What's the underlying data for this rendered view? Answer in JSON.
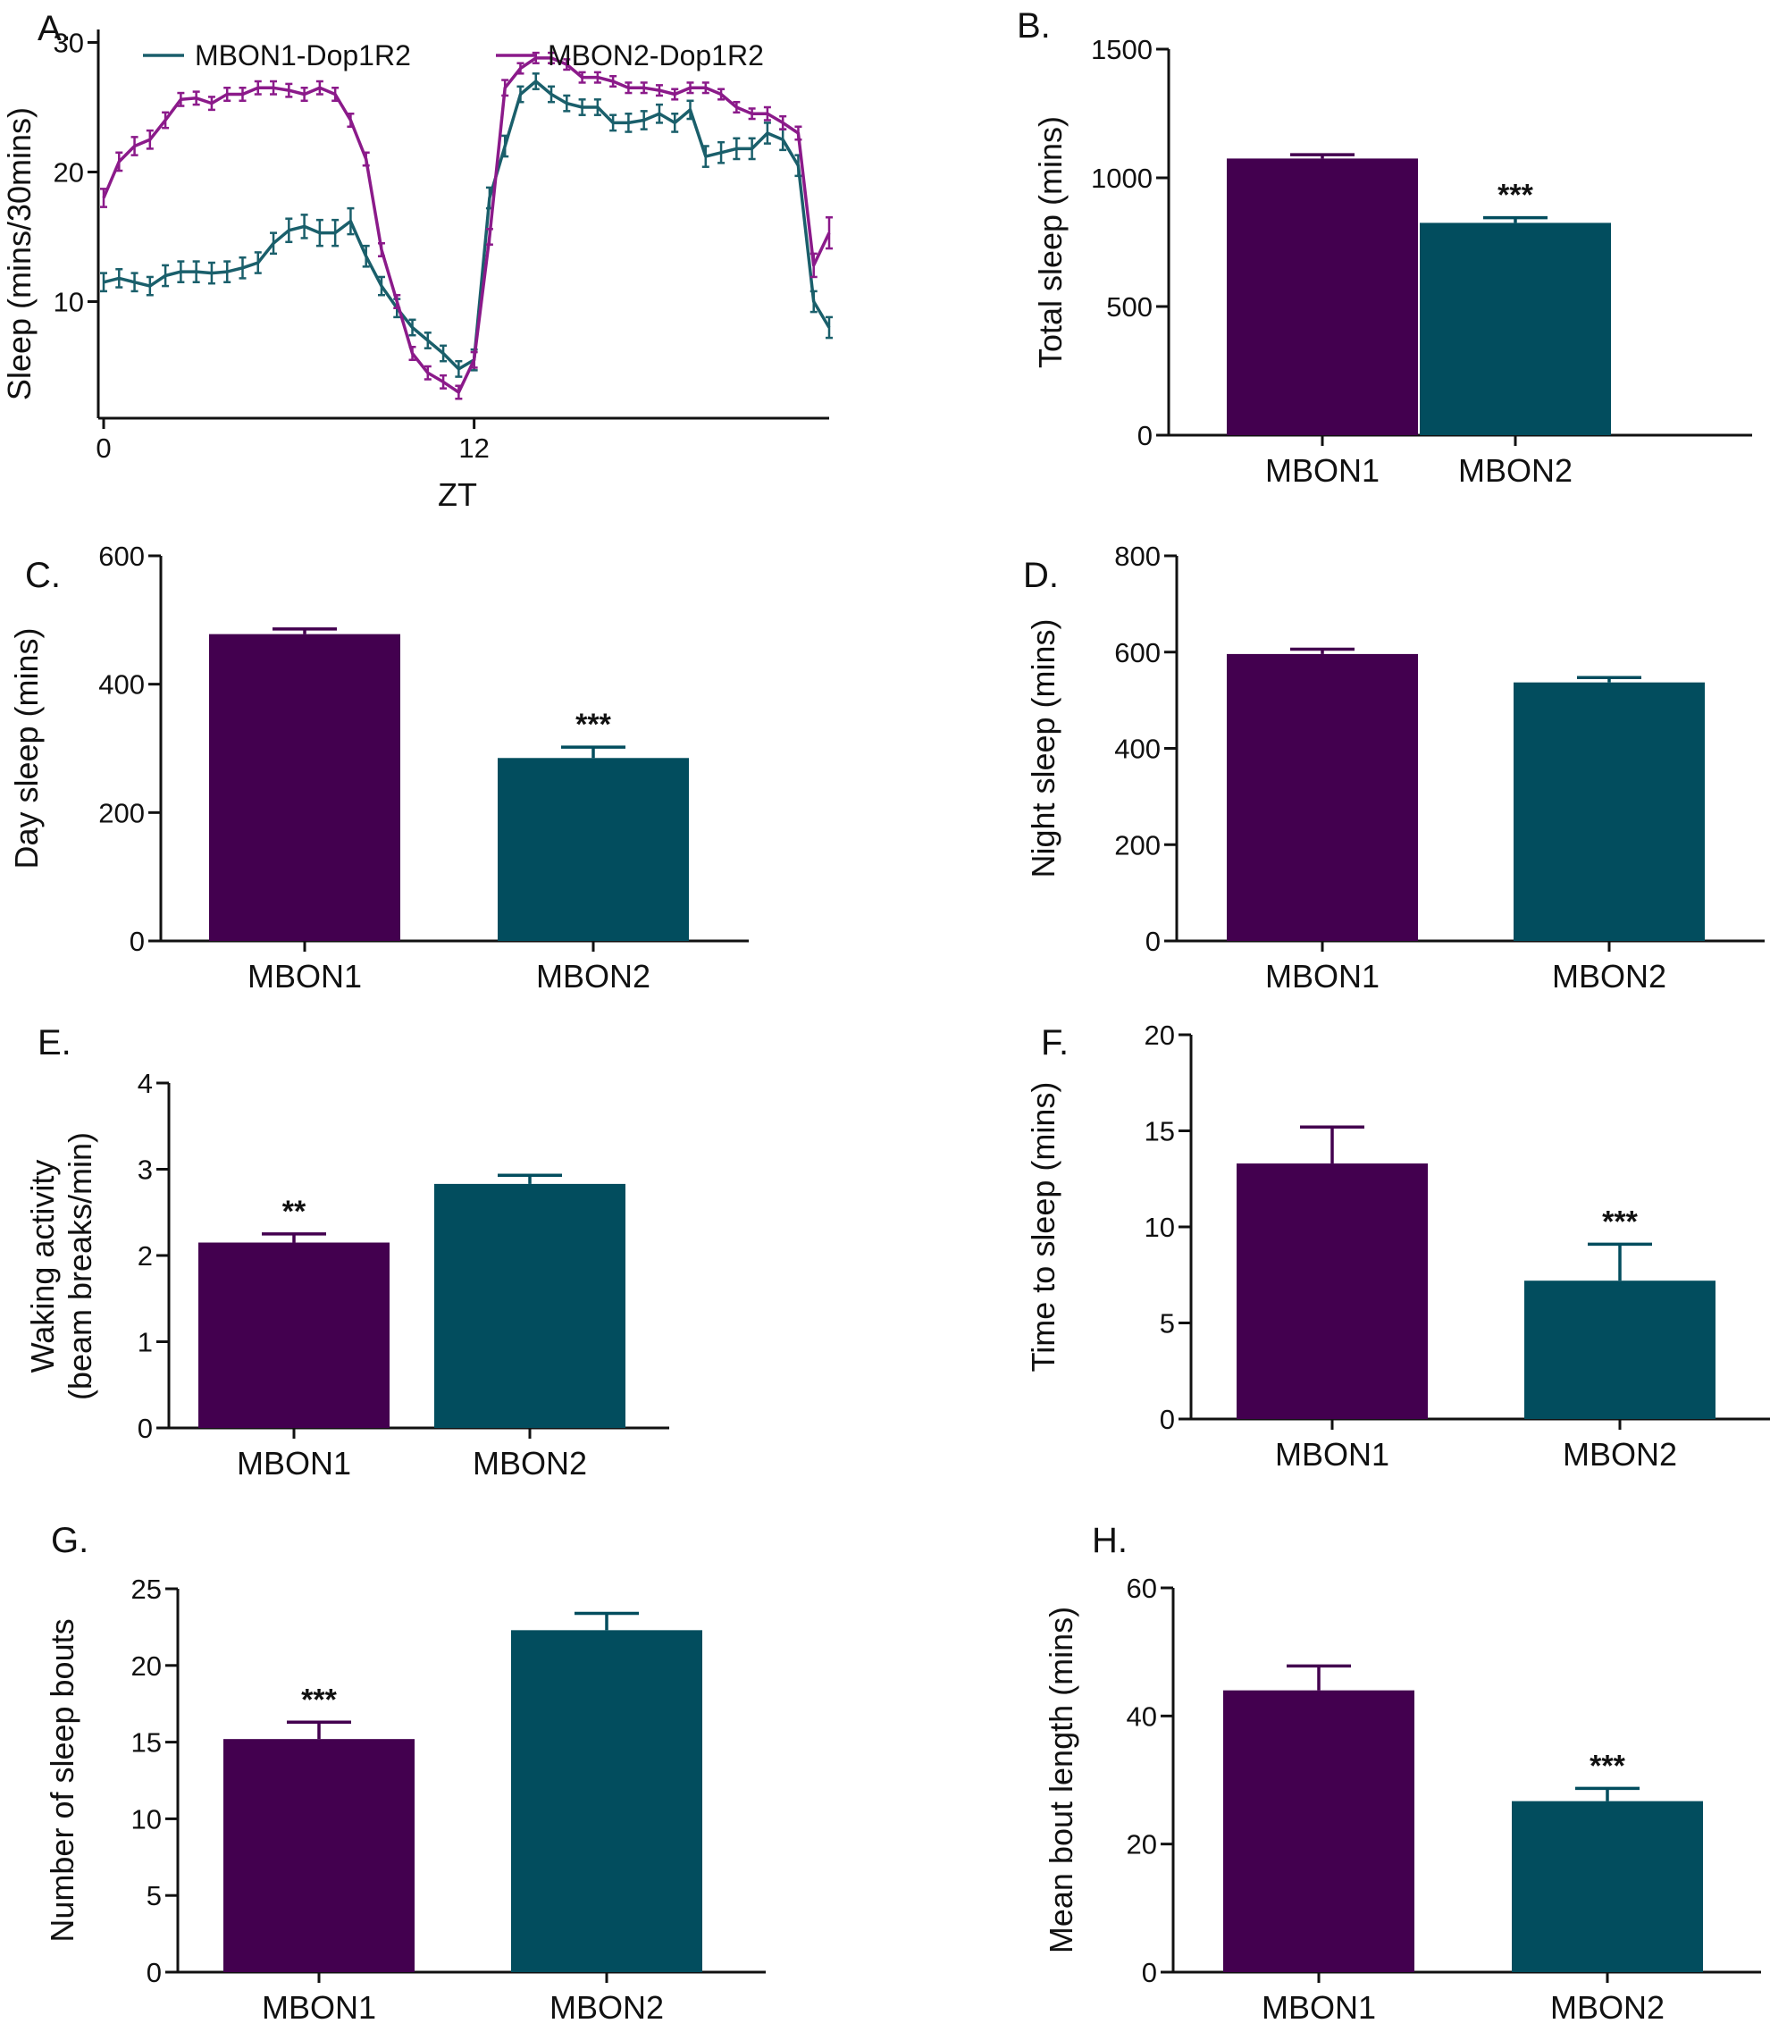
{
  "colors": {
    "MBON1": "#43004f",
    "MBON2": "#024d5e",
    "line_MBON1": "#1a5f6b",
    "line_MBON2": "#8b1a8a",
    "axis": "#111111"
  },
  "chart_data": [
    {
      "panel": "A.",
      "type": "line",
      "xlabel": "ZT",
      "ylabel": "Sleep (mins/30mins)",
      "xlim": [
        0,
        23.5
      ],
      "ylim": [
        1,
        31
      ],
      "x_ticks": [
        0,
        12
      ],
      "y_ticks": [
        10,
        20,
        30
      ],
      "legend_position": "top",
      "x": [
        0,
        0.5,
        1,
        1.5,
        2,
        2.5,
        3,
        3.5,
        4,
        4.5,
        5,
        5.5,
        6,
        6.5,
        7,
        7.5,
        8,
        8.5,
        9,
        9.5,
        10,
        10.5,
        11,
        11.5,
        12,
        12.5,
        13,
        13.5,
        14,
        14.5,
        15,
        15.5,
        16,
        16.5,
        17,
        17.5,
        18,
        18.5,
        19,
        19.5,
        20,
        20.5,
        21,
        21.5,
        22,
        22.5,
        23,
        23.5
      ],
      "series": [
        {
          "name": "MBON1-Dop1R2",
          "values": [
            11.5,
            11.8,
            11.5,
            11.2,
            12,
            12.3,
            12.3,
            12.2,
            12.3,
            12.6,
            13,
            14.5,
            15.5,
            15.8,
            15.3,
            15.3,
            16.2,
            13.5,
            11.2,
            9.5,
            8,
            7,
            6,
            4.8,
            5.5,
            18,
            22,
            26,
            27,
            26,
            25.3,
            25,
            25,
            23.8,
            23.8,
            24,
            24.5,
            23.8,
            24.8,
            21.2,
            21.5,
            21.8,
            21.8,
            23,
            22.5,
            20.5,
            10,
            8
          ],
          "error": [
            0.7,
            0.7,
            0.7,
            0.7,
            0.8,
            0.8,
            0.8,
            0.8,
            0.8,
            0.8,
            0.8,
            0.8,
            0.9,
            0.9,
            1,
            1,
            1,
            0.8,
            0.7,
            0.7,
            0.6,
            0.6,
            0.6,
            0.6,
            0.8,
            0.8,
            0.8,
            0.6,
            0.6,
            0.6,
            0.6,
            0.6,
            0.6,
            0.6,
            0.7,
            0.7,
            0.7,
            0.7,
            0.7,
            0.8,
            0.8,
            0.8,
            0.8,
            0.8,
            0.8,
            0.8,
            0.8,
            0.8
          ]
        },
        {
          "name": "MBON2-Dop1R2",
          "values": [
            18,
            20.8,
            22,
            22.5,
            24,
            25.6,
            25.7,
            25.3,
            26,
            26,
            26.5,
            26.5,
            26.3,
            26,
            26.5,
            26,
            24,
            21,
            14,
            10,
            6,
            4.5,
            3.8,
            3,
            5.5,
            15,
            26.5,
            28,
            28.8,
            28.8,
            28.3,
            27.3,
            27.3,
            27,
            26.5,
            26.5,
            26.3,
            26,
            26.5,
            26.5,
            26,
            25,
            24.5,
            24.5,
            23.8,
            23,
            12.8,
            15.3
          ],
          "error": [
            0.7,
            0.7,
            0.7,
            0.7,
            0.6,
            0.5,
            0.5,
            0.5,
            0.5,
            0.5,
            0.5,
            0.5,
            0.5,
            0.5,
            0.5,
            0.5,
            0.5,
            0.5,
            0.5,
            0.5,
            0.5,
            0.5,
            0.5,
            0.5,
            0.6,
            0.6,
            0.6,
            0.4,
            0.4,
            0.4,
            0.4,
            0.4,
            0.4,
            0.4,
            0.4,
            0.4,
            0.4,
            0.4,
            0.4,
            0.4,
            0.4,
            0.4,
            0.4,
            0.5,
            0.5,
            0.5,
            0.9,
            1.2
          ]
        }
      ]
    },
    {
      "panel": "B.",
      "type": "bar",
      "ylabel": "Total sleep (mins)",
      "categories": [
        "MBON1",
        "MBON2"
      ],
      "values": [
        1075,
        825
      ],
      "error": [
        15,
        20
      ],
      "significance": [
        "",
        "***"
      ],
      "ylim": [
        0,
        1500
      ],
      "y_ticks": [
        0,
        500,
        1000,
        1500
      ]
    },
    {
      "panel": "C.",
      "type": "bar",
      "ylabel": "Day sleep (mins)",
      "categories": [
        "MBON1",
        "MBON2"
      ],
      "values": [
        478,
        285
      ],
      "error": [
        8,
        17
      ],
      "significance": [
        "",
        "***"
      ],
      "ylim": [
        0,
        600
      ],
      "y_ticks": [
        0,
        200,
        400,
        600
      ]
    },
    {
      "panel": "D.",
      "type": "bar",
      "ylabel": "Night sleep (mins)",
      "categories": [
        "MBON1",
        "MBON2"
      ],
      "values": [
        596,
        537
      ],
      "error": [
        10,
        10
      ],
      "significance": [
        "",
        ""
      ],
      "ylim": [
        0,
        800
      ],
      "y_ticks": [
        0,
        200,
        400,
        600,
        800
      ]
    },
    {
      "panel": "E.",
      "type": "bar",
      "ylabel_lines": [
        "Waking activity",
        "(beam breaks/min)"
      ],
      "categories": [
        "MBON1",
        "MBON2"
      ],
      "values": [
        2.15,
        2.83
      ],
      "error": [
        0.1,
        0.1
      ],
      "significance": [
        "**",
        ""
      ],
      "ylim": [
        0,
        4
      ],
      "y_ticks": [
        0,
        1,
        2,
        3,
        4
      ]
    },
    {
      "panel": "F.",
      "type": "bar",
      "ylabel": "Time to sleep (mins)",
      "categories": [
        "MBON1",
        "MBON2"
      ],
      "values": [
        13.3,
        7.2
      ],
      "error": [
        1.9,
        1.9
      ],
      "significance": [
        "",
        "***"
      ],
      "ylim": [
        0,
        20
      ],
      "y_ticks": [
        0,
        5,
        10,
        15,
        20
      ]
    },
    {
      "panel": "G.",
      "type": "bar",
      "ylabel": "Number of sleep bouts",
      "categories": [
        "MBON1",
        "MBON2"
      ],
      "values": [
        15.2,
        22.3
      ],
      "error": [
        1.1,
        1.1
      ],
      "significance": [
        "***",
        ""
      ],
      "ylim": [
        0,
        25
      ],
      "y_ticks": [
        0,
        5,
        10,
        15,
        20,
        25
      ]
    },
    {
      "panel": "H.",
      "type": "bar",
      "ylabel": "Mean bout length (mins)",
      "categories": [
        "MBON1",
        "MBON2"
      ],
      "values": [
        44,
        26.7
      ],
      "error": [
        3.8,
        2
      ],
      "significance": [
        "",
        "***"
      ],
      "ylim": [
        0,
        60
      ],
      "y_ticks": [
        0,
        20,
        40,
        60
      ]
    }
  ]
}
